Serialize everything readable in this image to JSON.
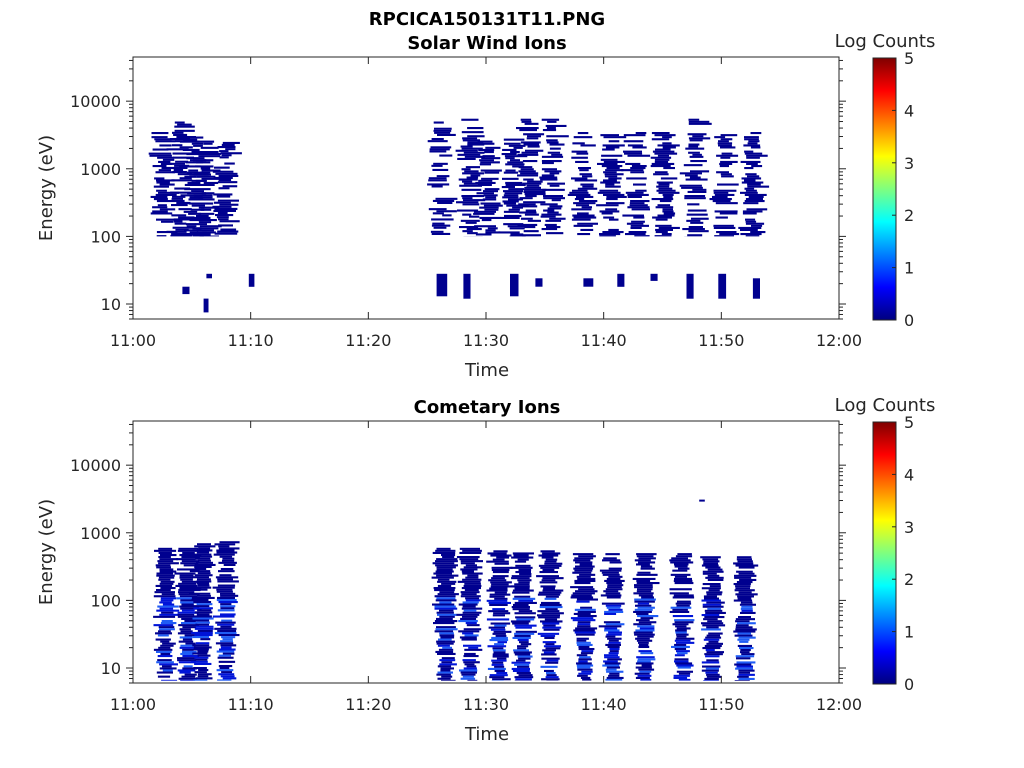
{
  "figure_title": "RPCICA150131T11.PNG",
  "colors": {
    "colormap": [
      "#00007f",
      "#0000ff",
      "#007fff",
      "#00ffff",
      "#7fff7f",
      "#ffff00",
      "#ff7f00",
      "#ff0000",
      "#7f0000"
    ],
    "dark": "#00008f",
    "medium": "#0014d8",
    "light": "#1f5cf5"
  },
  "chart_data": [
    {
      "type": "heatmap",
      "title": "Solar Wind Ions",
      "xlabel": "Time",
      "ylabel": "Energy (eV)",
      "y_scale": "log",
      "xlim": [
        "11:00",
        "12:00"
      ],
      "ylim": [
        6,
        45000
      ],
      "x_ticks": [
        "11:00",
        "11:10",
        "11:20",
        "11:30",
        "11:40",
        "11:50",
        "12:00"
      ],
      "y_ticks": [
        "10",
        "100",
        "1000",
        "10000"
      ],
      "colorbar": {
        "label": "Log Counts",
        "range": [
          0,
          5
        ],
        "ticks": [
          "0",
          "1",
          "2",
          "3",
          "4",
          "5"
        ]
      },
      "columns": [
        {
          "t": 11.0436,
          "emin": 100,
          "emax": 3500
        },
        {
          "t": 11.0686,
          "emin": 100,
          "emax": 5000
        },
        {
          "t": 11.0869,
          "emin": 100,
          "emax": 3000
        },
        {
          "t": 11.1036,
          "emin": 100,
          "emax": 3000
        },
        {
          "t": 11.1326,
          "emin": 100,
          "emax": 2500
        },
        {
          "t": 11.4376,
          "emin": 100,
          "emax": 5000
        },
        {
          "t": 11.4786,
          "emin": 100,
          "emax": 5500
        },
        {
          "t": 11.5036,
          "emin": 100,
          "emax": 3000
        },
        {
          "t": 11.5386,
          "emin": 100,
          "emax": 3000
        },
        {
          "t": 11.5629,
          "emin": 100,
          "emax": 5500
        },
        {
          "t": 11.5946,
          "emin": 100,
          "emax": 5500
        },
        {
          "t": 11.6379,
          "emin": 100,
          "emax": 3500
        },
        {
          "t": 11.6786,
          "emin": 100,
          "emax": 3500
        },
        {
          "t": 11.7139,
          "emin": 100,
          "emax": 3500
        },
        {
          "t": 11.7529,
          "emin": 100,
          "emax": 3500
        },
        {
          "t": 11.7969,
          "emin": 100,
          "emax": 5500
        },
        {
          "t": 11.8379,
          "emin": 100,
          "emax": 3500
        },
        {
          "t": 11.8786,
          "emin": 100,
          "emax": 3500
        }
      ],
      "low_energy_patches": [
        {
          "t0": 11.07,
          "t1": 11.08,
          "e0": 14,
          "e1": 18
        },
        {
          "t0": 11.1,
          "t1": 11.107,
          "e0": 7.5,
          "e1": 12
        },
        {
          "t0": 11.104,
          "t1": 11.112,
          "e0": 24,
          "e1": 28
        },
        {
          "t0": 11.164,
          "t1": 11.172,
          "e0": 18,
          "e1": 28
        },
        {
          "t0": 11.43,
          "t1": 11.445,
          "e0": 13,
          "e1": 28
        },
        {
          "t0": 11.468,
          "t1": 11.478,
          "e0": 12,
          "e1": 28
        },
        {
          "t0": 11.534,
          "t1": 11.546,
          "e0": 13,
          "e1": 28
        },
        {
          "t0": 11.57,
          "t1": 11.58,
          "e0": 18,
          "e1": 24
        },
        {
          "t0": 11.638,
          "t1": 11.652,
          "e0": 18,
          "e1": 24
        },
        {
          "t0": 11.686,
          "t1": 11.696,
          "e0": 18,
          "e1": 28
        },
        {
          "t0": 11.733,
          "t1": 11.743,
          "e0": 22,
          "e1": 28
        },
        {
          "t0": 11.784,
          "t1": 11.794,
          "e0": 12,
          "e1": 28
        },
        {
          "t0": 11.829,
          "t1": 11.84,
          "e0": 12,
          "e1": 28
        },
        {
          "t0": 11.878,
          "t1": 11.888,
          "e0": 12,
          "e1": 24
        }
      ]
    },
    {
      "type": "heatmap",
      "title": "Cometary Ions",
      "xlabel": "Time",
      "ylabel": "Energy (eV)",
      "y_scale": "log",
      "xlim": [
        "11:00",
        "12:00"
      ],
      "ylim": [
        6,
        45000
      ],
      "x_ticks": [
        "11:00",
        "11:10",
        "11:20",
        "11:30",
        "11:40",
        "11:50",
        "12:00"
      ],
      "y_ticks": [
        "10",
        "100",
        "1000",
        "10000"
      ],
      "colorbar": {
        "label": "Log Counts",
        "range": [
          0,
          5
        ],
        "ticks": [
          "0",
          "1",
          "2",
          "3",
          "4",
          "5"
        ]
      },
      "columns": [
        {
          "t": 11.0469,
          "emin": 6.5,
          "emax": 600
        },
        {
          "t": 11.0779,
          "emin": 6.5,
          "emax": 600
        },
        {
          "t": 11.0982,
          "emin": 6.5,
          "emax": 700
        },
        {
          "t": 11.1326,
          "emin": 6.5,
          "emax": 750
        },
        {
          "t": 11.4424,
          "emin": 6.5,
          "emax": 600
        },
        {
          "t": 11.4779,
          "emin": 6.5,
          "emax": 600
        },
        {
          "t": 11.5194,
          "emin": 6.5,
          "emax": 550
        },
        {
          "t": 11.5529,
          "emin": 6.5,
          "emax": 550
        },
        {
          "t": 11.5911,
          "emin": 6.5,
          "emax": 550
        },
        {
          "t": 11.6394,
          "emin": 6.5,
          "emax": 500
        },
        {
          "t": 11.6794,
          "emin": 6.5,
          "emax": 500
        },
        {
          "t": 11.7254,
          "emin": 6.5,
          "emax": 500
        },
        {
          "t": 11.7779,
          "emin": 6.5,
          "emax": 500
        },
        {
          "t": 11.8211,
          "emin": 6.5,
          "emax": 450
        },
        {
          "t": 11.8671,
          "emin": 6.5,
          "emax": 450
        }
      ],
      "isolated_patches": [
        {
          "t0": 11.802,
          "t1": 11.81,
          "e0": 2900,
          "e1": 3100
        }
      ]
    }
  ]
}
